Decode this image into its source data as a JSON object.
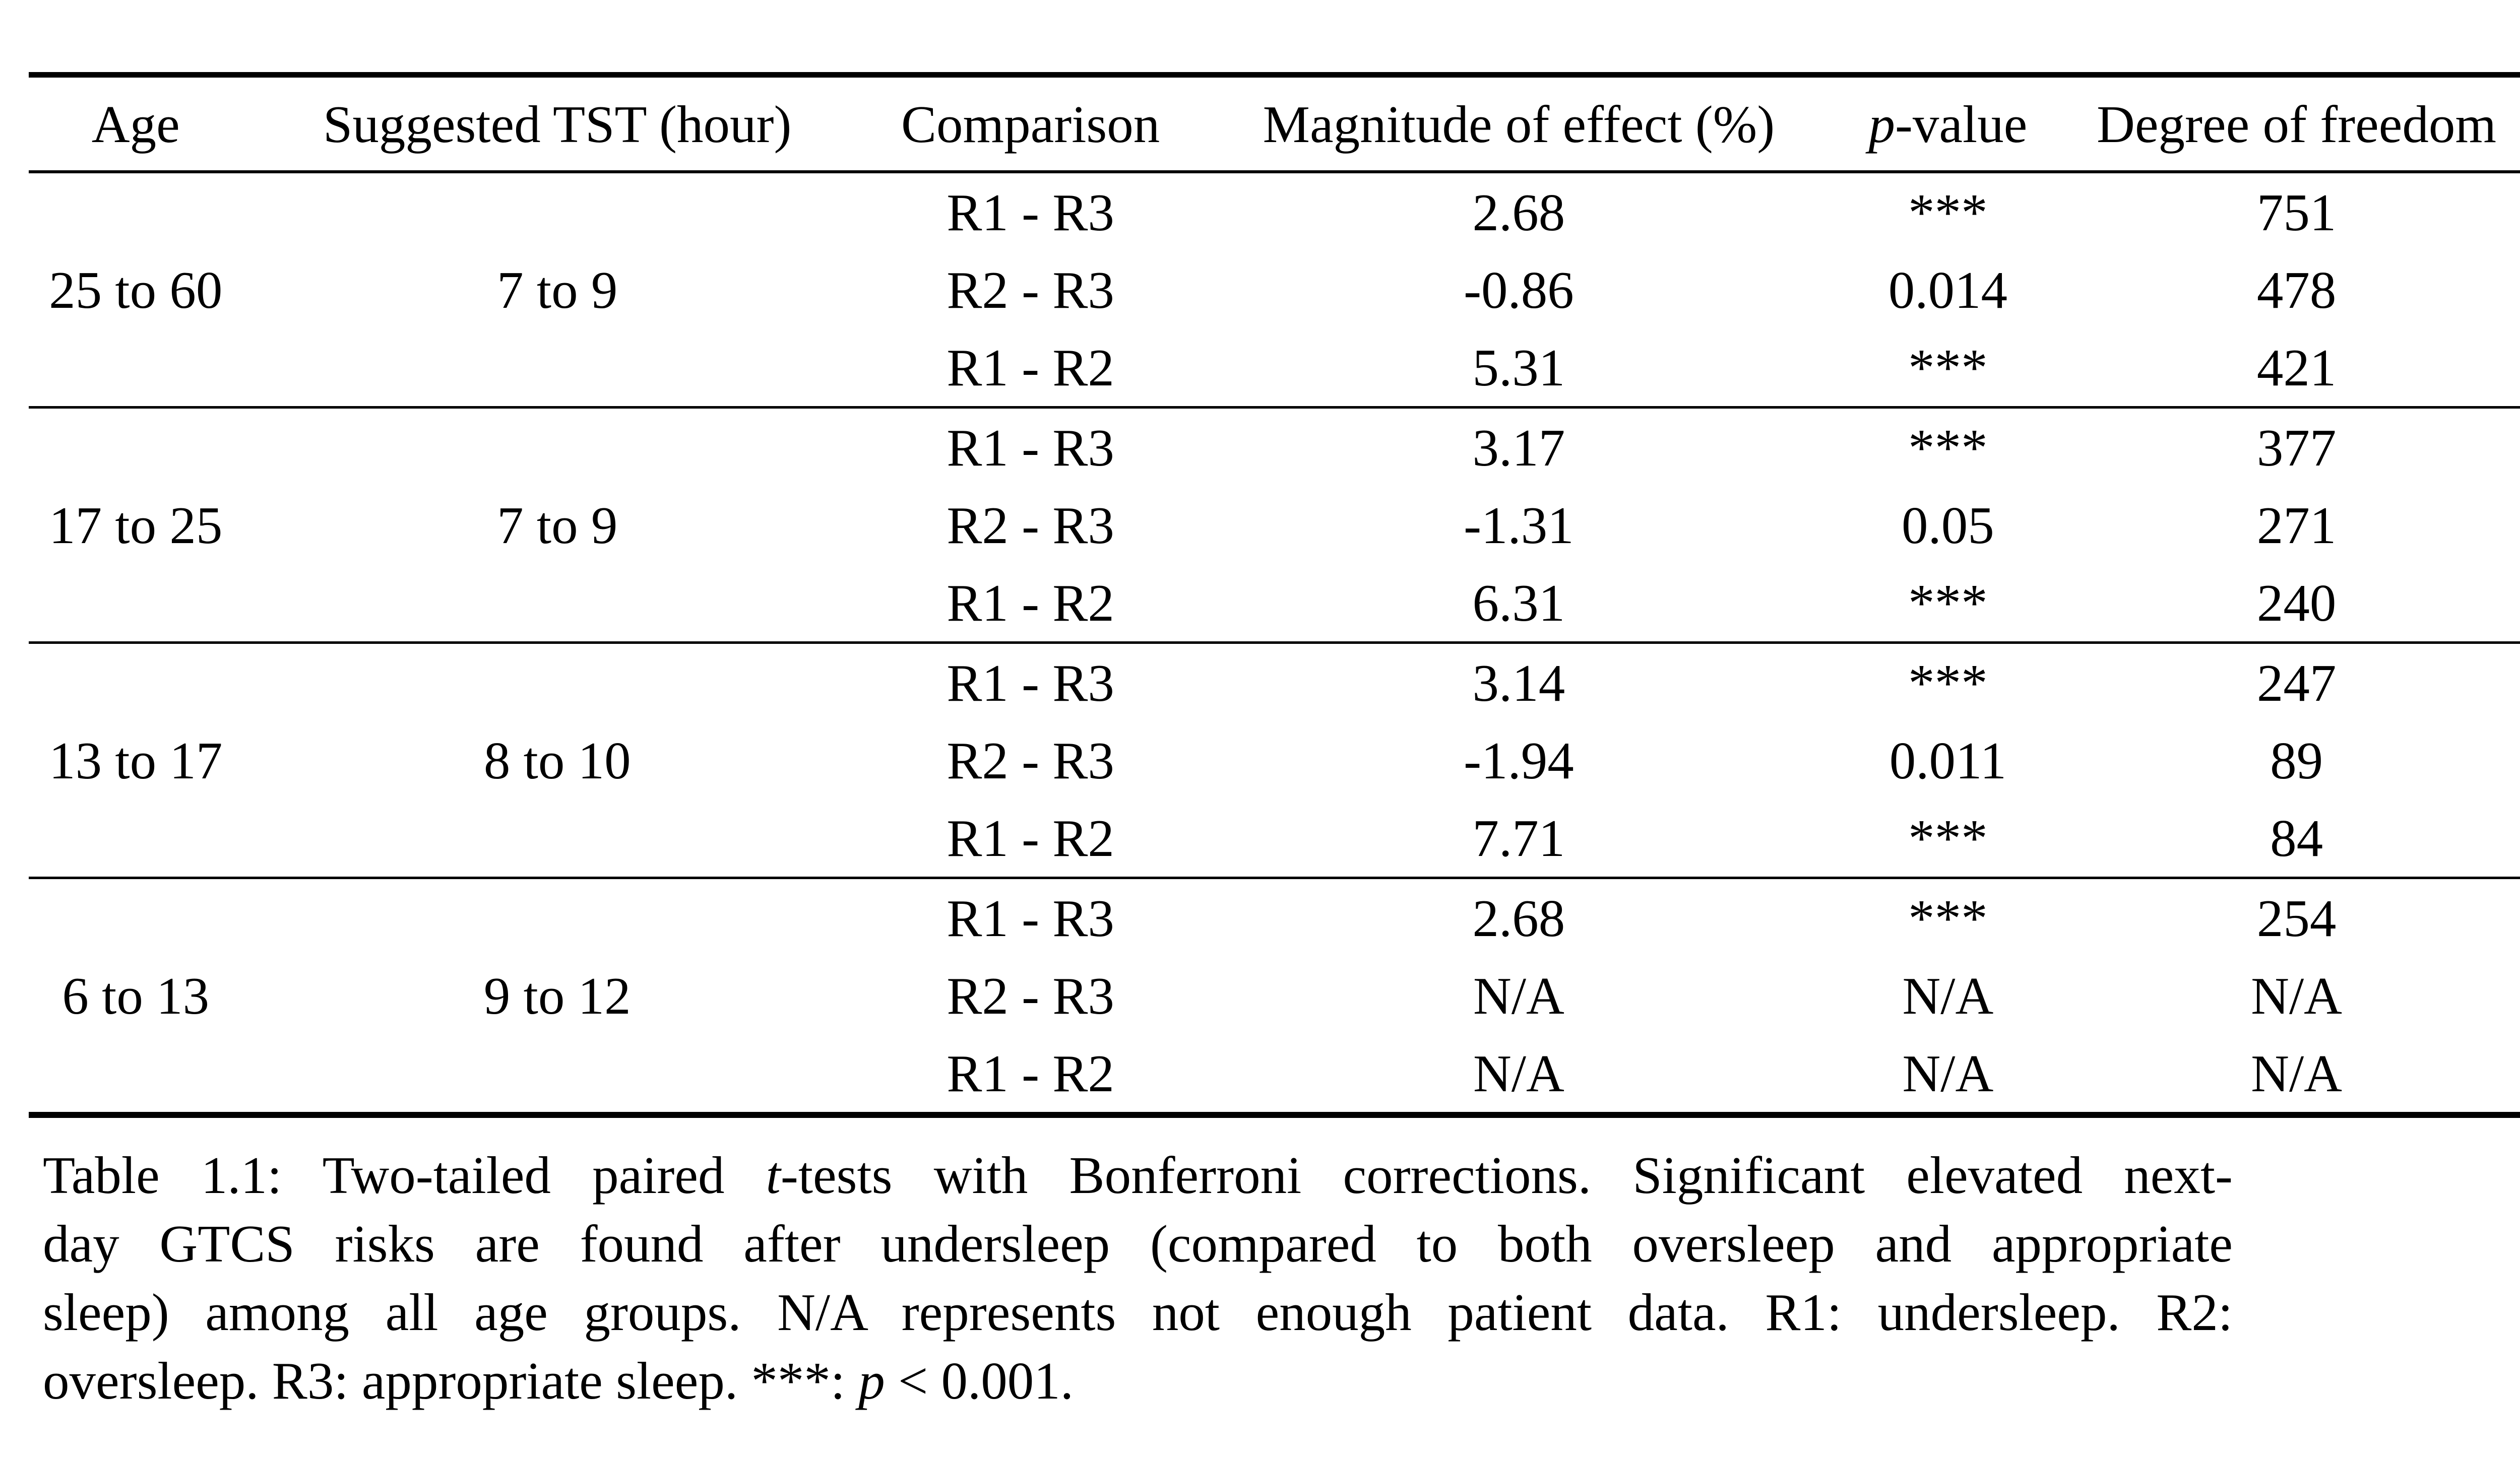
{
  "page": {
    "background_color": "#ffffff",
    "text_color": "#000000"
  },
  "table": {
    "header": {
      "age": [
        {
          "text": "Age"
        }
      ],
      "tst": [
        {
          "text": "Suggested TST (hour)"
        }
      ],
      "comparison": [
        {
          "text": "Comparison"
        }
      ],
      "magnitude": [
        {
          "text": "Magnitude of effect (%)"
        }
      ],
      "p_value": [
        {
          "text": "p",
          "italic": true
        },
        {
          "text": "-value"
        }
      ],
      "dof": [
        {
          "text": "Degree of freedom"
        }
      ]
    },
    "groups": [
      {
        "age": "25 to 60",
        "tst": "7 to 9",
        "rows": [
          {
            "comparison": "R1 - R3",
            "magnitude": "2.68",
            "p_value": "***",
            "dof": "751"
          },
          {
            "comparison": "R2 - R3",
            "magnitude": "-0.86",
            "p_value": "0.014",
            "dof": "478"
          },
          {
            "comparison": "R1 - R2",
            "magnitude": "5.31",
            "p_value": "***",
            "dof": "421"
          }
        ]
      },
      {
        "age": "17 to 25",
        "tst": "7 to 9",
        "rows": [
          {
            "comparison": "R1 - R3",
            "magnitude": "3.17",
            "p_value": "***",
            "dof": "377"
          },
          {
            "comparison": "R2 - R3",
            "magnitude": "-1.31",
            "p_value": "0.05",
            "dof": "271"
          },
          {
            "comparison": "R1 - R2",
            "magnitude": "6.31",
            "p_value": "***",
            "dof": "240"
          }
        ]
      },
      {
        "age": "13 to 17",
        "tst": "8 to 10",
        "rows": [
          {
            "comparison": "R1 - R3",
            "magnitude": "3.14",
            "p_value": "***",
            "dof": "247"
          },
          {
            "comparison": "R2 - R3",
            "magnitude": "-1.94",
            "p_value": "0.011",
            "dof": "89"
          },
          {
            "comparison": "R1 - R2",
            "magnitude": "7.71",
            "p_value": "***",
            "dof": "84"
          }
        ]
      },
      {
        "age": "6 to 13",
        "tst": "9 to 12",
        "rows": [
          {
            "comparison": "R1 - R3",
            "magnitude": "2.68",
            "p_value": "***",
            "dof": "254"
          },
          {
            "comparison": "R2 - R3",
            "magnitude": "N/A",
            "p_value": "N/A",
            "dof": "N/A"
          },
          {
            "comparison": "R1 - R2",
            "magnitude": "N/A",
            "p_value": "N/A",
            "dof": "N/A"
          }
        ]
      }
    ]
  },
  "caption": {
    "label": "Table 1.1:",
    "lines": [
      {
        "segments": [
          {
            "text": "Table 1.1: Two-tailed paired "
          },
          {
            "text": "t",
            "italic": true
          },
          {
            "text": "-tests with Bonferroni corrections. Significant elevated next-"
          }
        ]
      },
      {
        "segments": [
          {
            "text": "day GTCS risks are found after undersleep (compared to both oversleep and appropriate"
          }
        ]
      },
      {
        "segments": [
          {
            "text": "sleep) among all age groups. N/A represents not enough patient data. R1: undersleep. R2:"
          }
        ]
      },
      {
        "segments": [
          {
            "text": "oversleep. R3: appropriate sleep. ***: "
          },
          {
            "text": "p",
            "italic": true
          },
          {
            "text": " < 0.001."
          }
        ]
      }
    ]
  }
}
